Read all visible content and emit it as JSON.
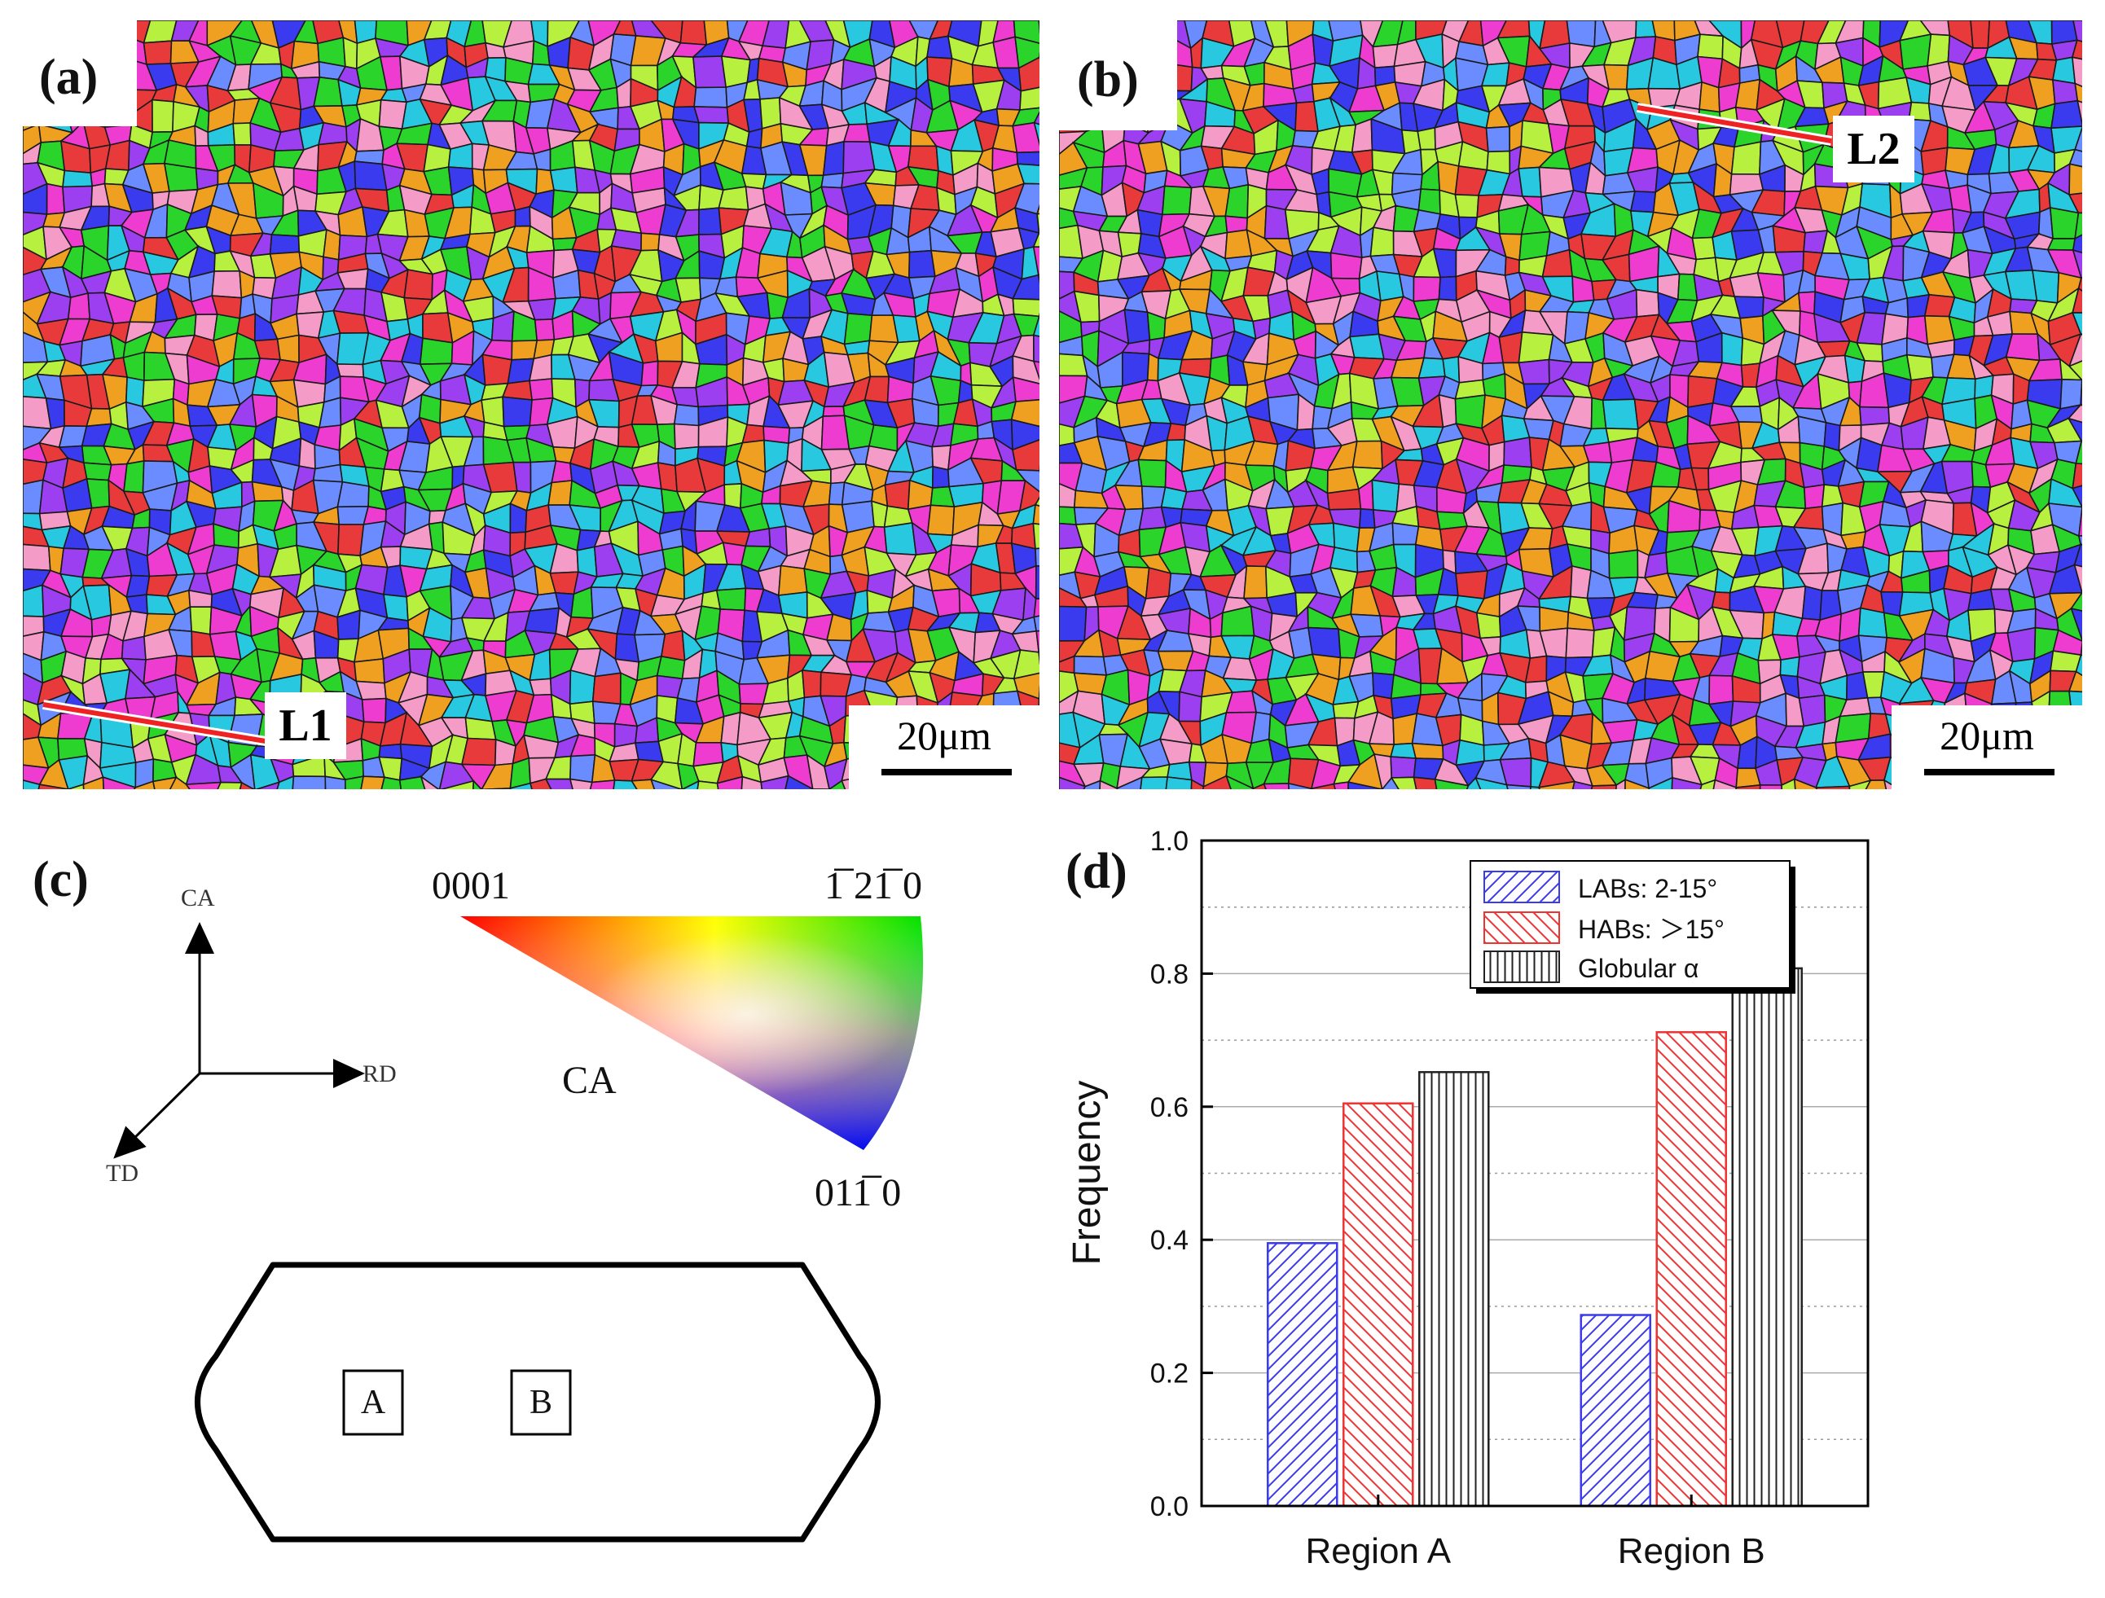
{
  "figure": {
    "panels": {
      "a": {
        "label": "(a)",
        "line_label": "L1",
        "scale_bar": "20μm",
        "palette": [
          "#2bd42b",
          "#3a3aee",
          "#28c8e0",
          "#9b3ff0",
          "#ee3bd0",
          "#e83a3a",
          "#f0a020",
          "#b8f040",
          "#f59bc8",
          "#6a8cff"
        ]
      },
      "b": {
        "label": "(b)",
        "line_label": "L2",
        "scale_bar": "20μm",
        "palette": [
          "#2bd42b",
          "#3a3aee",
          "#28c8e0",
          "#9b3ff0",
          "#ee3bd0",
          "#e83a3a",
          "#f0a020",
          "#b8f040",
          "#f59bc8",
          "#6a8cff"
        ]
      }
    },
    "panel_c": {
      "label": "(c)",
      "axes": {
        "ca": "CA",
        "rd": "RD",
        "td": "TD"
      },
      "ipf": {
        "corner_0001": "0001",
        "corner_1210": "1̅ 21̅ 0",
        "corner_0110": "011̅ 0",
        "center_label": "CA"
      },
      "plate": {
        "region_a": "A",
        "region_b": "B"
      }
    },
    "panel_d": {
      "label": "(d)"
    }
  },
  "chart_data": {
    "type": "bar",
    "title": "",
    "xlabel": "",
    "ylabel": "Frequency",
    "ylim": [
      0.0,
      1.0
    ],
    "yticks": [
      "0.0",
      "0.2",
      "0.4",
      "0.6",
      "0.8",
      "1.0"
    ],
    "ytick_values": [
      0.0,
      0.2,
      0.4,
      0.6,
      0.8,
      1.0
    ],
    "grid": true,
    "legend_position": "top-center",
    "categories": [
      "Region A",
      "Region B"
    ],
    "series": [
      {
        "name": "LABs: 2-15°",
        "values": [
          0.395,
          0.287
        ],
        "color": "#3a3aee",
        "hatch": "diagonal-up"
      },
      {
        "name": "HABs: ＞15°",
        "values": [
          0.605,
          0.712
        ],
        "color": "#ee3333",
        "hatch": "diagonal-down"
      },
      {
        "name": "Globular α",
        "values": [
          0.652,
          0.808
        ],
        "color": "#222222",
        "hatch": "vertical"
      }
    ]
  }
}
